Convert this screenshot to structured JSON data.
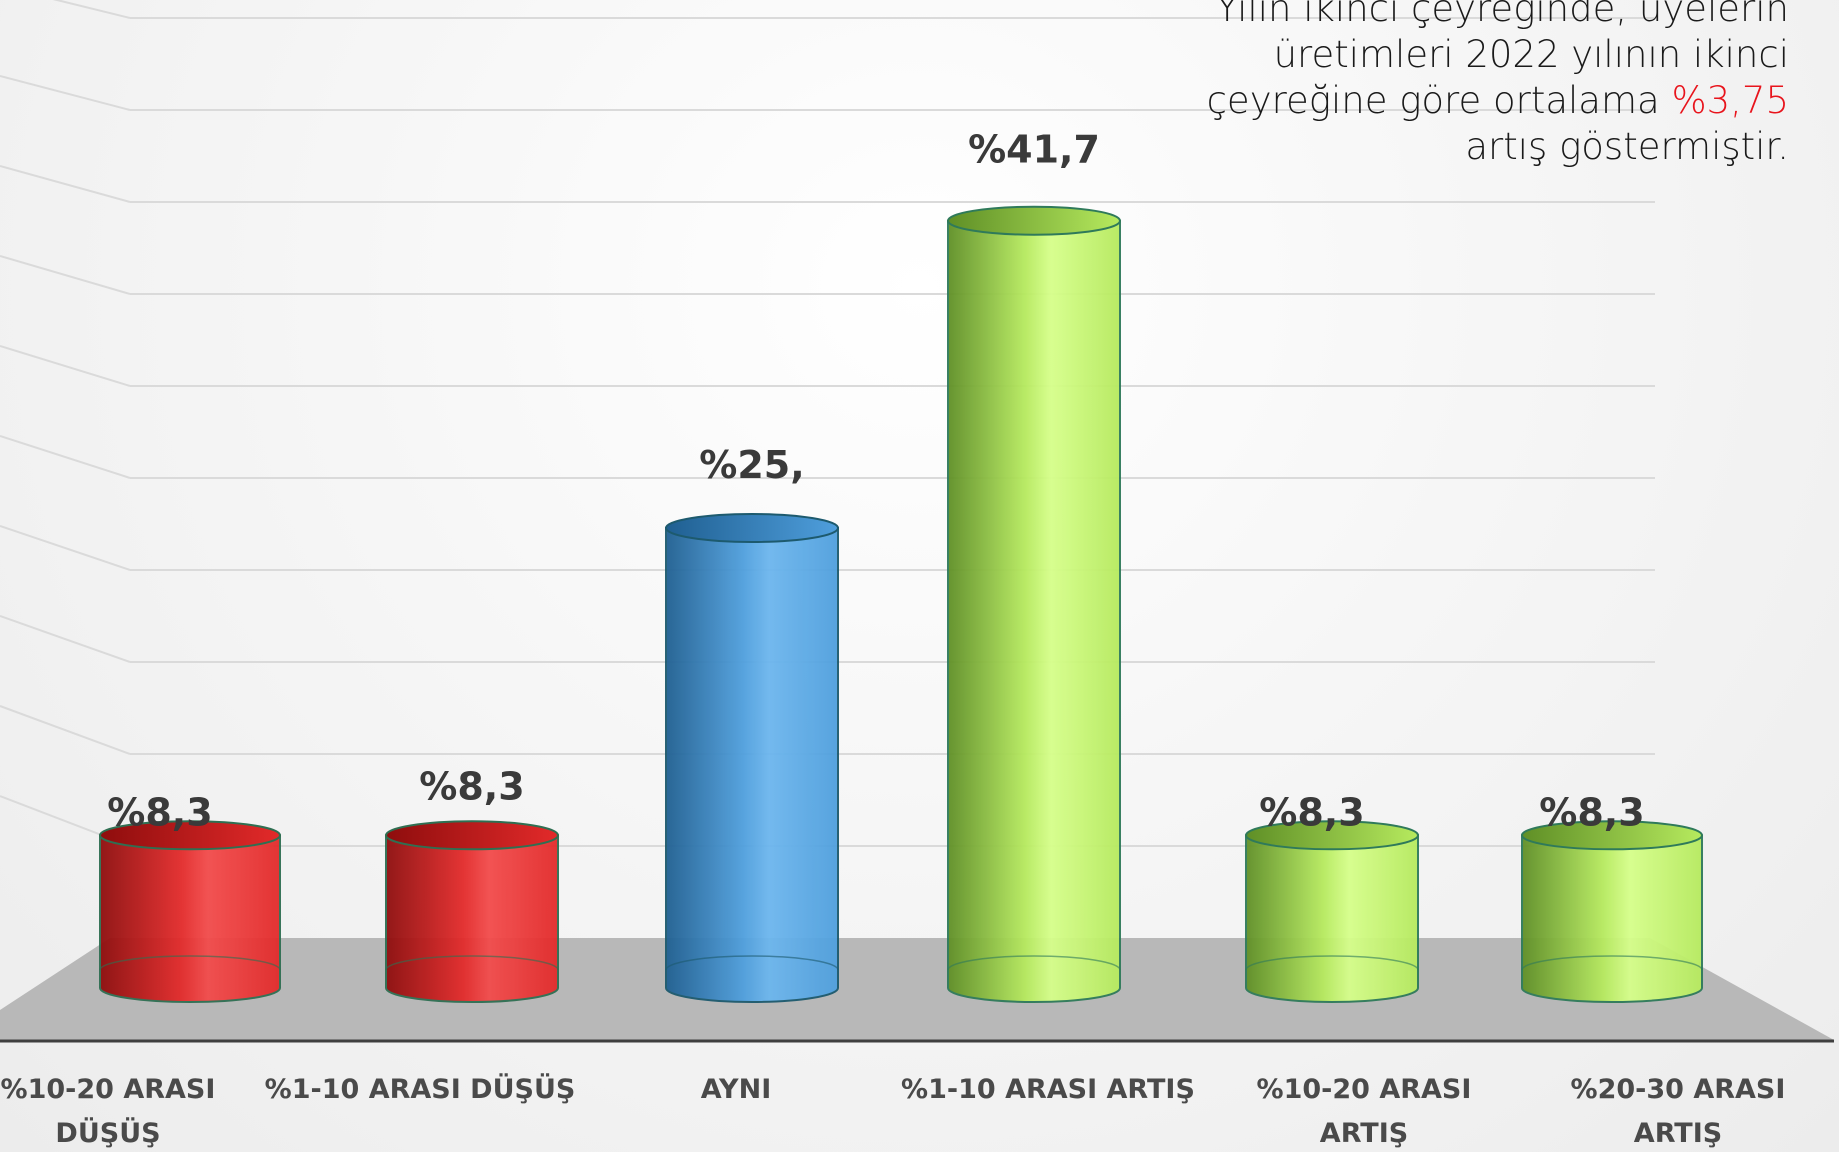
{
  "annotation": {
    "line1": "Yılın ikinci çeyreğinde, üyelerin",
    "line2": "üretimleri 2022 yılının ikinci",
    "line3_prefix": "çeyreğine göre ortalama ",
    "line3_highlight": "%3,75",
    "line4": "artış göstermiştir.",
    "highlight_color": "#e8141c"
  },
  "chart_data": {
    "type": "bar",
    "title": "",
    "xlabel": "",
    "ylabel": "",
    "ylim": [
      0,
      50
    ],
    "grid": true,
    "categories": [
      [
        "%10-20 ARASI",
        "DÜŞÜŞ"
      ],
      [
        "%1-10 ARASI DÜŞÜŞ"
      ],
      [
        "AYNI"
      ],
      [
        "%1-10 ARASI ARTIŞ"
      ],
      [
        "%10-20 ARASI",
        "ARTIŞ"
      ],
      [
        "%20-30 ARASI",
        "ARTIŞ"
      ]
    ],
    "values": [
      8.3,
      8.3,
      25,
      41.7,
      8.3,
      8.3
    ],
    "data_labels": [
      "%8,3",
      "%8,3",
      "%25,",
      "%41,7",
      "%8,3",
      "%8,3"
    ],
    "bar_colors": [
      "red",
      "red",
      "blue",
      "green",
      "green",
      "green"
    ],
    "palette": {
      "red": {
        "dark": "#8e0d0d",
        "mid": "#e32a2a",
        "light": "#f24b4b",
        "edge": "#2f6f52"
      },
      "blue": {
        "dark": "#1f5f91",
        "mid": "#4f9fdd",
        "light": "#6cb6ee",
        "edge": "#1d5a6e"
      },
      "green": {
        "dark": "#5f8f26",
        "mid": "#b6ea5e",
        "light": "#d6ff8a",
        "edge": "#2f7a5a"
      },
      "floor": "#b8b8b8",
      "floor_line": "#3f3f3f",
      "grid": "#dadada"
    }
  }
}
